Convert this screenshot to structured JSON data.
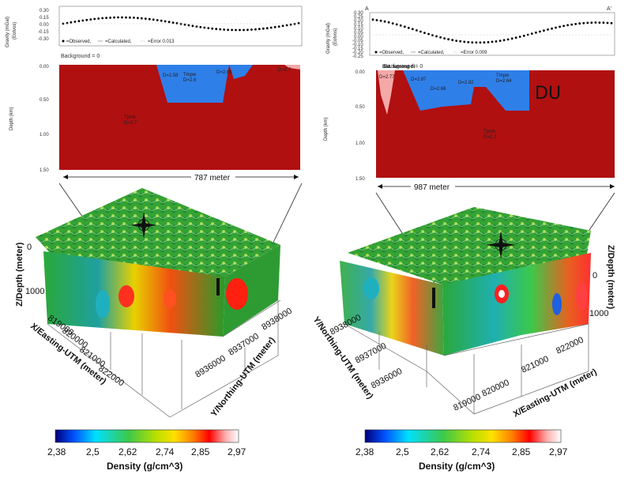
{
  "left": {
    "gravity_ylabel": "Gravity (mGal)",
    "gravity_yunit": "(Eotvos)",
    "gravity_ticks": [
      "0.30",
      "0.15",
      "0.00",
      "-0.15",
      "-0.30"
    ],
    "legend_observed": "=Observed,",
    "legend_calculated": "=Calculated,",
    "legend_error": "=Error 0.013",
    "background": "Background = 0",
    "depth_ylabel": "Depth (km)",
    "depth_ticks": [
      "0.00",
      "0.50",
      "1.00",
      "1.50"
    ],
    "units": {
      "tmpw_name": "Tmpw",
      "tmpw_d": "D=2.6",
      "d1": "D=2.58",
      "d2": "D=2.68",
      "d3": "D=2.7",
      "tpmk_name": "Tpmk",
      "tpmk_d": "D=2.7"
    },
    "measure": "787 meter",
    "axis_z": "Z/Depth (meter)",
    "axis_x": "X/Easting-UTM (meter)",
    "axis_y": "Y/Northing-UTM (meter)",
    "z_ticks": [
      "0",
      "1000"
    ],
    "x_ticks": [
      "819000",
      "820000",
      "821000",
      "822000"
    ],
    "y_ticks": [
      "8936000",
      "8937000",
      "8938000"
    ]
  },
  "right": {
    "label_a": "A",
    "label_a_prime": "A'",
    "gravity_ylabel": "Gravity (mGal)",
    "gravity_yunit": "(Eotvos)",
    "gravity_ticks": [
      "0.30",
      "0.25",
      "0.20",
      "0.15",
      "0.10",
      "0.05",
      "0.00",
      "-0.05",
      "-0.10",
      "-0.15",
      "-0.20",
      "-0.25"
    ],
    "legend_observed": "=Observed,",
    "legend_calculated": "=Calculated,",
    "legend_error": "=Error 0.009",
    "background": "Background = 0",
    "depth_ylabel": "Depth (km)",
    "depth_ticks": [
      "0.00",
      "0.50",
      "1.00",
      "1.50"
    ],
    "units": {
      "bat_name": "Bat. tameng di",
      "bat_d": "D=2.77",
      "d1": "D=2.87",
      "d2": "D=2.66",
      "d3": "D=2.82",
      "tmpw_name": "Tmpw",
      "tmpw_d": "D=2.64",
      "tpmk_name": "Tpmk",
      "tpmk_d": "D=2.7",
      "du": "DU"
    },
    "measure": "987 meter",
    "axis_z": "Z/Depth (meter)",
    "axis_x": "X/Easting-UTM (meter)",
    "axis_y": "Y/Northing-UTM (meter)",
    "z_ticks": [
      "0",
      "1000"
    ],
    "x_ticks": [
      "819000",
      "820000",
      "821000",
      "822000"
    ],
    "y_ticks": [
      "8936000",
      "8937000",
      "8938000"
    ]
  },
  "colorbar": {
    "title": "Density (g/cm^3)",
    "ticks": [
      "2,38",
      "2,5",
      "2,62",
      "2,74",
      "2,85",
      "2,97"
    ],
    "colors": [
      "#00007a",
      "#0050ff",
      "#00e0ff",
      "#3cc84a",
      "#b8e000",
      "#ffe000",
      "#ff8000",
      "#ff0000",
      "#ffb0b0",
      "#ffffff"
    ]
  },
  "palette": {
    "body_red": "#b01010",
    "water_blue": "#2f7fe8",
    "cube_green": "#2f9a2c"
  }
}
